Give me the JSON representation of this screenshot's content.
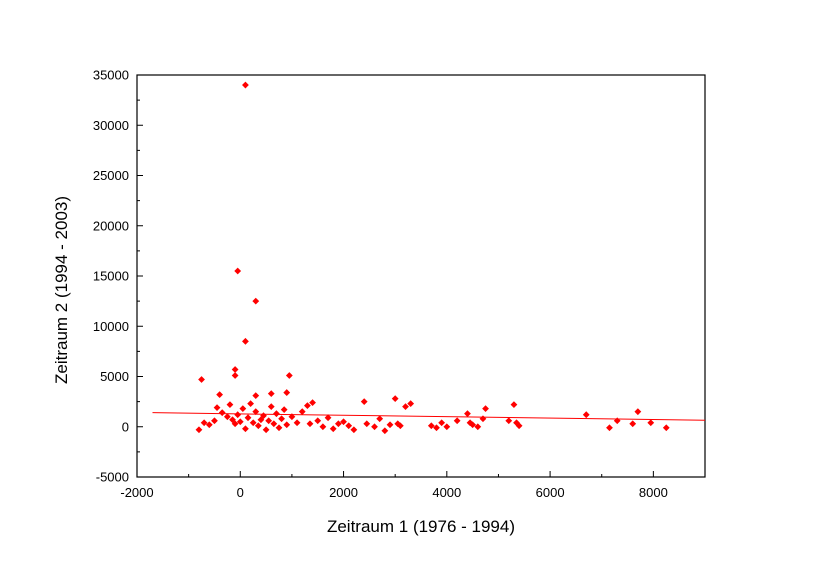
{
  "chart_data": {
    "type": "scatter",
    "title": "",
    "xlabel": "Zeitraum 1 (1976 - 1994)",
    "ylabel": "Zeitraum 2 (1994 - 2003)",
    "xlim": [
      -2000,
      9000
    ],
    "ylim": [
      -5000,
      35000
    ],
    "x_ticks": [
      -2000,
      0,
      2000,
      4000,
      6000,
      8000
    ],
    "y_ticks": [
      -5000,
      0,
      5000,
      10000,
      15000,
      20000,
      25000,
      30000,
      35000
    ],
    "x_tick_labels": [
      "-2000",
      "0",
      "2000",
      "4000",
      "6000",
      "8000"
    ],
    "y_tick_labels": [
      "-5000",
      "0",
      "5000",
      "10000",
      "15000",
      "20000",
      "25000",
      "30000",
      "35000"
    ],
    "grid": false,
    "legend": "none",
    "marker_color": "#ff0000",
    "line_color": "#ff0000",
    "series": [
      {
        "kind": "points",
        "points": [
          [
            100,
            34000
          ],
          [
            -50,
            15500
          ],
          [
            300,
            12500
          ],
          [
            100,
            8500
          ],
          [
            -100,
            5700
          ],
          [
            -100,
            5100
          ],
          [
            950,
            5100
          ],
          [
            -750,
            4700
          ],
          [
            -400,
            3200
          ],
          [
            600,
            3300
          ],
          [
            900,
            3400
          ],
          [
            300,
            3100
          ],
          [
            -700,
            400
          ],
          [
            -800,
            -300
          ],
          [
            -600,
            200
          ],
          [
            -500,
            600
          ],
          [
            -450,
            1900
          ],
          [
            -350,
            1400
          ],
          [
            -250,
            1000
          ],
          [
            -200,
            2200
          ],
          [
            -150,
            700
          ],
          [
            -100,
            300
          ],
          [
            -50,
            1200
          ],
          [
            0,
            500
          ],
          [
            50,
            1800
          ],
          [
            100,
            -200
          ],
          [
            150,
            900
          ],
          [
            200,
            2300
          ],
          [
            250,
            400
          ],
          [
            300,
            1500
          ],
          [
            350,
            100
          ],
          [
            400,
            700
          ],
          [
            450,
            1100
          ],
          [
            500,
            -300
          ],
          [
            550,
            600
          ],
          [
            600,
            2000
          ],
          [
            650,
            300
          ],
          [
            700,
            1300
          ],
          [
            750,
            -100
          ],
          [
            800,
            800
          ],
          [
            850,
            1700
          ],
          [
            900,
            200
          ],
          [
            1000,
            1000
          ],
          [
            1100,
            400
          ],
          [
            1200,
            1500
          ],
          [
            1300,
            2100
          ],
          [
            1350,
            300
          ],
          [
            1400,
            2400
          ],
          [
            1500,
            600
          ],
          [
            1600,
            0
          ],
          [
            1700,
            900
          ],
          [
            1800,
            -200
          ],
          [
            1900,
            300
          ],
          [
            2000,
            500
          ],
          [
            2100,
            100
          ],
          [
            2200,
            -300
          ],
          [
            2400,
            2500
          ],
          [
            2450,
            300
          ],
          [
            2600,
            0
          ],
          [
            2700,
            800
          ],
          [
            2800,
            -400
          ],
          [
            2900,
            200
          ],
          [
            3000,
            2800
          ],
          [
            3050,
            300
          ],
          [
            3200,
            2000
          ],
          [
            3300,
            2300
          ],
          [
            3100,
            100
          ],
          [
            3700,
            100
          ],
          [
            3800,
            -100
          ],
          [
            3900,
            400
          ],
          [
            4000,
            0
          ],
          [
            4200,
            600
          ],
          [
            4400,
            1300
          ],
          [
            4450,
            400
          ],
          [
            4500,
            200
          ],
          [
            4600,
            0
          ],
          [
            4700,
            800
          ],
          [
            4750,
            1800
          ],
          [
            5200,
            600
          ],
          [
            5300,
            2200
          ],
          [
            5350,
            400
          ],
          [
            5400,
            100
          ],
          [
            6700,
            1200
          ],
          [
            7150,
            -100
          ],
          [
            7300,
            600
          ],
          [
            7600,
            300
          ],
          [
            7700,
            1500
          ],
          [
            7950,
            400
          ],
          [
            8250,
            -100
          ]
        ]
      },
      {
        "kind": "fit-line",
        "points": [
          [
            -1700,
            1400
          ],
          [
            9000,
            650
          ]
        ]
      }
    ]
  }
}
